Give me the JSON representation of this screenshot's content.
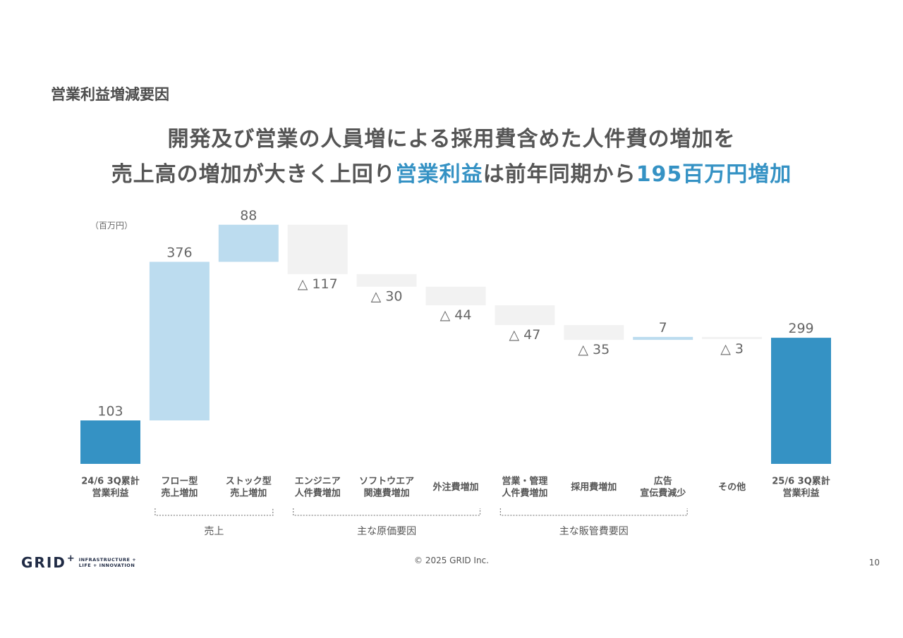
{
  "section_title": "営業利益増減要因",
  "headline": {
    "line1": "開発及び営業の人員増による採用費含めた人件費の増加を",
    "line2_a": "売上高の増加が大きく上回り",
    "line2_b": "営業利益",
    "line2_c": "は前年同期から",
    "line2_d": "195百万円増加"
  },
  "unit_label": "（百万円）",
  "colors": {
    "total": "#3592c4",
    "increase": "#bcdcef",
    "decrease": "#f2f2f2",
    "accent": "#3592c4"
  },
  "chart_data": {
    "type": "waterfall",
    "categories": [
      [
        "24/6 3Q累計",
        "営業利益"
      ],
      [
        "フロー型",
        "売上増加"
      ],
      [
        "ストック型",
        "売上増加"
      ],
      [
        "エンジニア",
        "人件費増加"
      ],
      [
        "ソフトウエア",
        "関連費増加"
      ],
      [
        "外注費増加"
      ],
      [
        "営業・管理",
        "人件費増加"
      ],
      [
        "採用費増加"
      ],
      [
        "広告",
        "宣伝費減少"
      ],
      [
        "その他"
      ],
      [
        "25/6 3Q累計",
        "営業利益"
      ]
    ],
    "values": [
      103,
      376,
      88,
      -117,
      -30,
      -44,
      -47,
      -35,
      7,
      -3,
      299
    ],
    "kinds": [
      "total",
      "increase",
      "increase",
      "decrease",
      "decrease",
      "decrease",
      "decrease",
      "decrease",
      "increase",
      "decrease",
      "total"
    ],
    "labels": [
      "103",
      "376",
      "88",
      "△ 117",
      "△ 30",
      "△ 44",
      "△ 47",
      "△ 35",
      "7",
      "△ 3",
      "299"
    ],
    "groups": [
      {
        "label": "売上",
        "from": 1,
        "to": 2
      },
      {
        "label": "主な原価要因",
        "from": 3,
        "to": 5
      },
      {
        "label": "主な販管費要因",
        "from": 6,
        "to": 8
      }
    ]
  },
  "footer": {
    "logo_word": "GRID",
    "logo_plus": "+",
    "logo_tag_1": "INFRASTRUCTURE +",
    "logo_tag_2": "LIFE + INNOVATION",
    "copyright": "© 2025 GRID Inc.",
    "page_number": "10"
  }
}
